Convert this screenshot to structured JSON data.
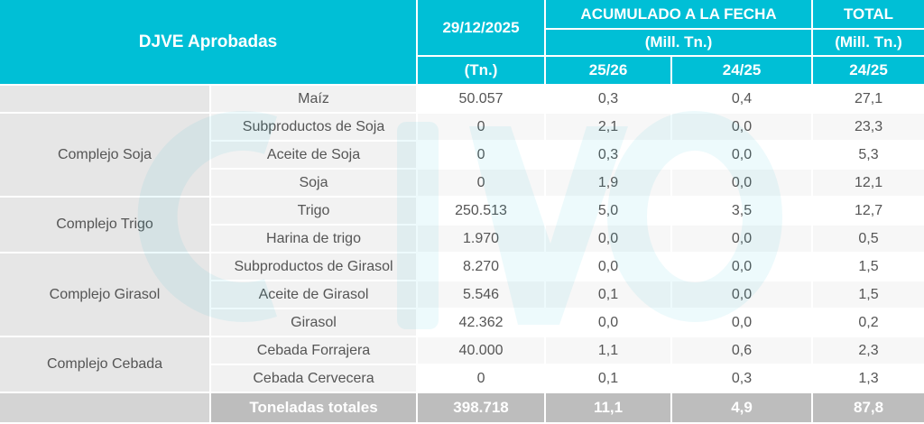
{
  "header": {
    "title": "DJVE Aprobadas",
    "date": "29/12/2025",
    "date_unit": "(Tn.)",
    "accum_title": "ACUMULADO A LA FECHA",
    "accum_unit": "(Mill. Tn.)",
    "total_title": "TOTAL",
    "total_unit": "(Mill. Tn.)",
    "col_2526": "25/26",
    "col_2425": "24/25",
    "col_total_2425": "24/25"
  },
  "rows": [
    {
      "group": "",
      "product": "Maíz",
      "tn": "50.057",
      "c2526": "0,3",
      "c2425": "0,4",
      "total": "27,1"
    },
    {
      "group": "Complejo Soja",
      "product": "Subproductos de Soja",
      "tn": "0",
      "c2526": "2,1",
      "c2425": "0,0",
      "total": "23,3"
    },
    {
      "group": "",
      "product": "Aceite de Soja",
      "tn": "0",
      "c2526": "0,3",
      "c2425": "0,0",
      "total": "5,3"
    },
    {
      "group": "",
      "product": "Soja",
      "tn": "0",
      "c2526": "1,9",
      "c2425": "0,0",
      "total": "12,1"
    },
    {
      "group": "Complejo Trigo",
      "product": "Trigo",
      "tn": "250.513",
      "c2526": "5,0",
      "c2425": "3,5",
      "total": "12,7"
    },
    {
      "group": "",
      "product": "Harina de trigo",
      "tn": "1.970",
      "c2526": "0,0",
      "c2425": "0,0",
      "total": "0,5"
    },
    {
      "group": "Complejo Girasol",
      "product": "Subproductos de Girasol",
      "tn": "8.270",
      "c2526": "0,0",
      "c2425": "0,0",
      "total": "1,5"
    },
    {
      "group": "",
      "product": "Aceite de Girasol",
      "tn": "5.546",
      "c2526": "0,1",
      "c2425": "0,0",
      "total": "1,5"
    },
    {
      "group": "",
      "product": "Girasol",
      "tn": "42.362",
      "c2526": "0,0",
      "c2425": "0,0",
      "total": "0,2"
    },
    {
      "group": "Complejo Cebada",
      "product": "Cebada Forrajera",
      "tn": "40.000",
      "c2526": "1,1",
      "c2425": "0,6",
      "total": "2,3"
    },
    {
      "group": "",
      "product": "Cebada Cervecera",
      "tn": "0",
      "c2526": "0,1",
      "c2425": "0,3",
      "total": "1,3"
    }
  ],
  "footer": {
    "label": "Toneladas totales",
    "tn": "398.718",
    "c2526": "11,1",
    "c2425": "4,9",
    "total": "87,8"
  },
  "colors": {
    "header_bg": "#00bfd6",
    "footer_bg": "#bdbdbd",
    "watermark": "#e3f6f9"
  }
}
